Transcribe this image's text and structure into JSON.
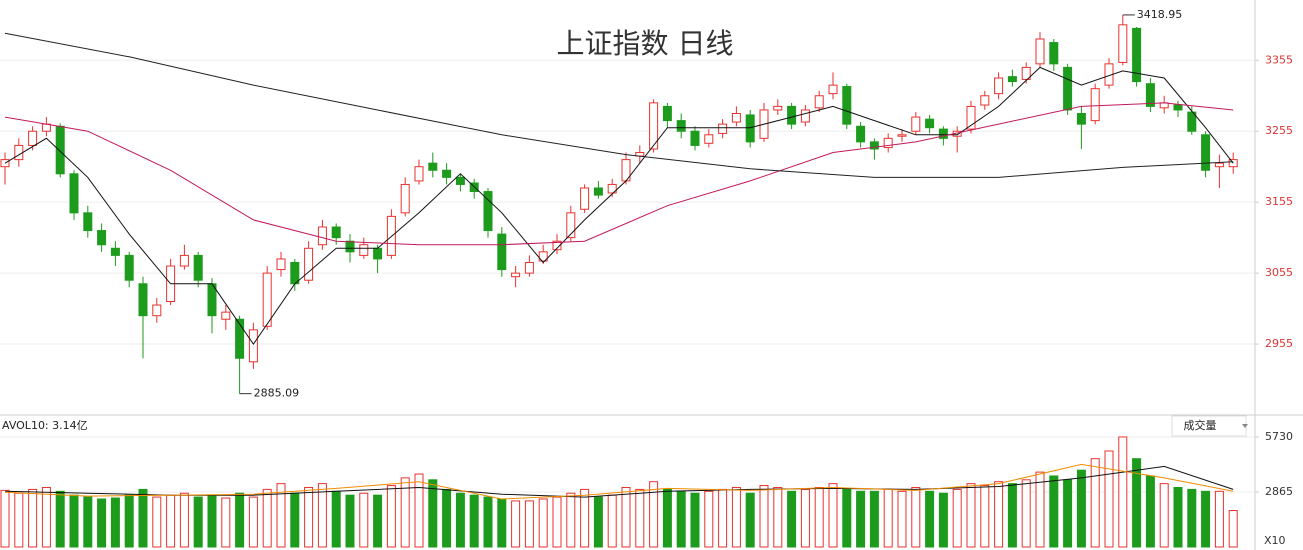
{
  "chart_data": [
    {
      "type": "candlestick",
      "title": "上证指数 日线",
      "up_color": "#e8322f",
      "down_color": "#1c9b1c",
      "open": [
        3205,
        3215,
        3235,
        3255,
        3262,
        3195,
        3140,
        3115,
        3090,
        3080,
        3040,
        2995,
        3015,
        3065,
        3080,
        3040,
        2990,
        2990,
        2930,
        2980,
        3060,
        3070,
        3045,
        3095,
        3120,
        3100,
        3080,
        3090,
        3080,
        3140,
        3185,
        3210,
        3200,
        3190,
        3182,
        3170,
        3110,
        3050,
        3055,
        3072,
        3088,
        3105,
        3145,
        3175,
        3168,
        3185,
        3220,
        3230,
        3290,
        3270,
        3255,
        3238,
        3252,
        3268,
        3278,
        3245,
        3285,
        3290,
        3268,
        3288,
        3308,
        3318,
        3262,
        3240,
        3232,
        3248,
        3255,
        3272,
        3258,
        3248,
        3258,
        3292,
        3308,
        3332,
        3328,
        3350,
        3380,
        3345,
        3280,
        3270,
        3320,
        3352,
        3400,
        3322,
        3288,
        3292,
        3282,
        3250,
        3205,
        3205
      ],
      "high": [
        3225,
        3245,
        3262,
        3275,
        3266,
        3200,
        3150,
        3125,
        3100,
        3085,
        3050,
        3020,
        3075,
        3095,
        3085,
        3048,
        3010,
        2995,
        2985,
        3065,
        3085,
        3075,
        3100,
        3130,
        3125,
        3110,
        3105,
        3095,
        3145,
        3190,
        3215,
        3225,
        3210,
        3195,
        3188,
        3175,
        3120,
        3065,
        3080,
        3095,
        3110,
        3150,
        3180,
        3185,
        3188,
        3225,
        3235,
        3300,
        3295,
        3280,
        3262,
        3258,
        3272,
        3290,
        3285,
        3295,
        3300,
        3295,
        3292,
        3312,
        3338,
        3322,
        3268,
        3245,
        3252,
        3258,
        3282,
        3278,
        3262,
        3262,
        3298,
        3312,
        3338,
        3342,
        3352,
        3395,
        3385,
        3350,
        3290,
        3322,
        3358,
        3418.95,
        3402,
        3330,
        3305,
        3298,
        3290,
        3255,
        3222,
        3225
      ],
      "low": [
        3180,
        3205,
        3228,
        3248,
        3190,
        3130,
        3105,
        3085,
        3065,
        3035,
        2935,
        2985,
        3010,
        3060,
        3035,
        2970,
        2975,
        2885.09,
        2920,
        2975,
        3050,
        3030,
        3040,
        3088,
        3095,
        3070,
        3075,
        3055,
        3075,
        3135,
        3180,
        3190,
        3180,
        3170,
        3160,
        3105,
        3050,
        3035,
        3050,
        3068,
        3082,
        3100,
        3140,
        3160,
        3162,
        3180,
        3210,
        3225,
        3260,
        3245,
        3228,
        3232,
        3245,
        3262,
        3232,
        3240,
        3278,
        3258,
        3262,
        3282,
        3300,
        3258,
        3232,
        3215,
        3225,
        3240,
        3250,
        3252,
        3235,
        3225,
        3252,
        3285,
        3300,
        3318,
        3322,
        3345,
        3340,
        3278,
        3230,
        3265,
        3315,
        3348,
        3318,
        3282,
        3280,
        3275,
        3250,
        3190,
        3175,
        3195
      ],
      "close": [
        3215,
        3235,
        3255,
        3265,
        3195,
        3140,
        3115,
        3095,
        3080,
        3045,
        2995,
        3010,
        3065,
        3080,
        3045,
        2995,
        3000,
        2935,
        2975,
        3055,
        3075,
        3040,
        3090,
        3120,
        3105,
        3085,
        3095,
        3075,
        3135,
        3180,
        3205,
        3200,
        3190,
        3180,
        3170,
        3115,
        3060,
        3055,
        3070,
        3085,
        3100,
        3140,
        3175,
        3165,
        3180,
        3215,
        3225,
        3295,
        3270,
        3255,
        3235,
        3250,
        3265,
        3280,
        3240,
        3285,
        3290,
        3265,
        3285,
        3305,
        3320,
        3265,
        3240,
        3230,
        3245,
        3250,
        3275,
        3260,
        3245,
        3255,
        3290,
        3305,
        3330,
        3325,
        3345,
        3385,
        3350,
        3285,
        3265,
        3315,
        3350,
        3405,
        3325,
        3290,
        3295,
        3285,
        3255,
        3200,
        3210,
        3215
      ],
      "lines": [
        {
          "color": "#111111",
          "x": [
            0,
            3,
            6,
            9,
            12,
            15,
            18,
            21,
            24,
            27,
            30,
            33,
            36,
            39,
            42,
            45,
            48,
            51,
            54,
            57,
            60,
            63,
            66,
            69,
            72,
            75,
            78,
            81,
            84,
            87,
            89
          ],
          "values": [
            3210,
            3245,
            3190,
            3110,
            3040,
            3040,
            2955,
            3040,
            3090,
            3090,
            3140,
            3195,
            3140,
            3070,
            3130,
            3185,
            3260,
            3260,
            3260,
            3275,
            3290,
            3270,
            3250,
            3250,
            3290,
            3345,
            3320,
            3340,
            3330,
            3260,
            3210
          ]
        },
        {
          "color": "#c2185b",
          "x": [
            0,
            6,
            12,
            18,
            24,
            30,
            36,
            42,
            48,
            54,
            60,
            66,
            72,
            78,
            84,
            89
          ],
          "values": [
            3275,
            3255,
            3200,
            3130,
            3100,
            3095,
            3095,
            3100,
            3150,
            3185,
            3225,
            3240,
            3265,
            3290,
            3295,
            3285
          ]
        },
        {
          "color": "#222222",
          "x": [
            0,
            9,
            18,
            27,
            36,
            45,
            54,
            63,
            72,
            81,
            89
          ],
          "values": [
            3393,
            3360,
            3320,
            3285,
            3250,
            3222,
            3202,
            3190,
            3190,
            3204,
            3212
          ]
        }
      ],
      "ylim": [
        2855,
        3440
      ],
      "yticks": [
        2955,
        3055,
        3155,
        3255,
        3355
      ],
      "grid": true
    },
    {
      "type": "volume",
      "label": "AVOL10: 3.14亿",
      "selector": "成交量",
      "unit": "X10",
      "values": [
        2950,
        2800,
        3000,
        3100,
        2900,
        2700,
        2600,
        2500,
        2550,
        2700,
        3000,
        2600,
        2700,
        2800,
        2600,
        2700,
        2550,
        2800,
        2600,
        3000,
        3300,
        2800,
        3100,
        3300,
        2900,
        2700,
        2800,
        2700,
        3200,
        3600,
        3800,
        3500,
        3000,
        2800,
        2700,
        2600,
        2500,
        2400,
        2400,
        2500,
        2600,
        2800,
        3000,
        2600,
        2700,
        3100,
        3000,
        3400,
        3000,
        2900,
        2800,
        2900,
        3000,
        3100,
        2800,
        3200,
        3100,
        2900,
        3000,
        3100,
        3300,
        3000,
        2900,
        2900,
        3000,
        2900,
        3100,
        2900,
        2800,
        3000,
        3300,
        3200,
        3400,
        3300,
        3500,
        3900,
        3700,
        3500,
        4000,
        4600,
        5000,
        5730,
        4600,
        3700,
        3300,
        3100,
        3000,
        2900,
        2900,
        1900
      ],
      "lines": [
        {
          "color": "#111111",
          "x": [
            0,
            6,
            12,
            18,
            24,
            30,
            36,
            42,
            48,
            54,
            60,
            66,
            72,
            78,
            84,
            89
          ],
          "values": [
            2900,
            2800,
            2700,
            2700,
            2900,
            3100,
            2750,
            2600,
            2900,
            3000,
            3050,
            3000,
            3150,
            3600,
            4200,
            3000
          ]
        },
        {
          "color": "#f08c00",
          "x": [
            0,
            6,
            12,
            18,
            24,
            30,
            36,
            42,
            48,
            54,
            60,
            66,
            72,
            78,
            84,
            89
          ],
          "values": [
            2850,
            2650,
            2700,
            2750,
            3050,
            3400,
            2500,
            2700,
            3050,
            2950,
            3100,
            2950,
            3300,
            4300,
            3600,
            2900
          ]
        }
      ],
      "ylim": [
        0,
        6875
      ],
      "yticks": [
        2865,
        5730
      ],
      "grid": true
    }
  ]
}
